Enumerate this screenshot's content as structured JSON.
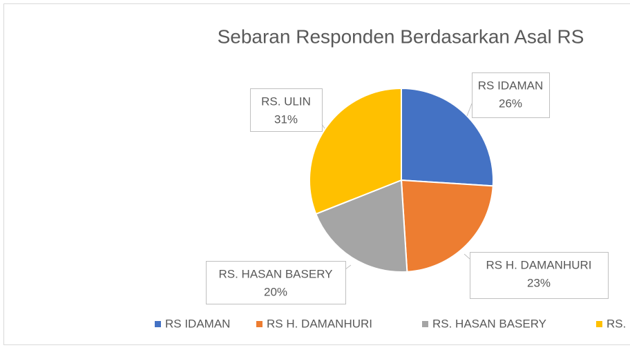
{
  "chart_data": {
    "type": "pie",
    "title": "Sebaran Responden Berdasarkan Asal RS",
    "categories": [
      "RS IDAMAN",
      "RS H. DAMANHURI",
      "RS. HASAN BASERY",
      "RS. ULIN"
    ],
    "values": [
      26,
      23,
      20,
      31
    ],
    "value_labels": [
      "26%",
      "23%",
      "20%",
      "31%"
    ],
    "colors": [
      "#4472c4",
      "#ed7d31",
      "#a5a5a5",
      "#ffc000"
    ],
    "legend": "bottom"
  }
}
